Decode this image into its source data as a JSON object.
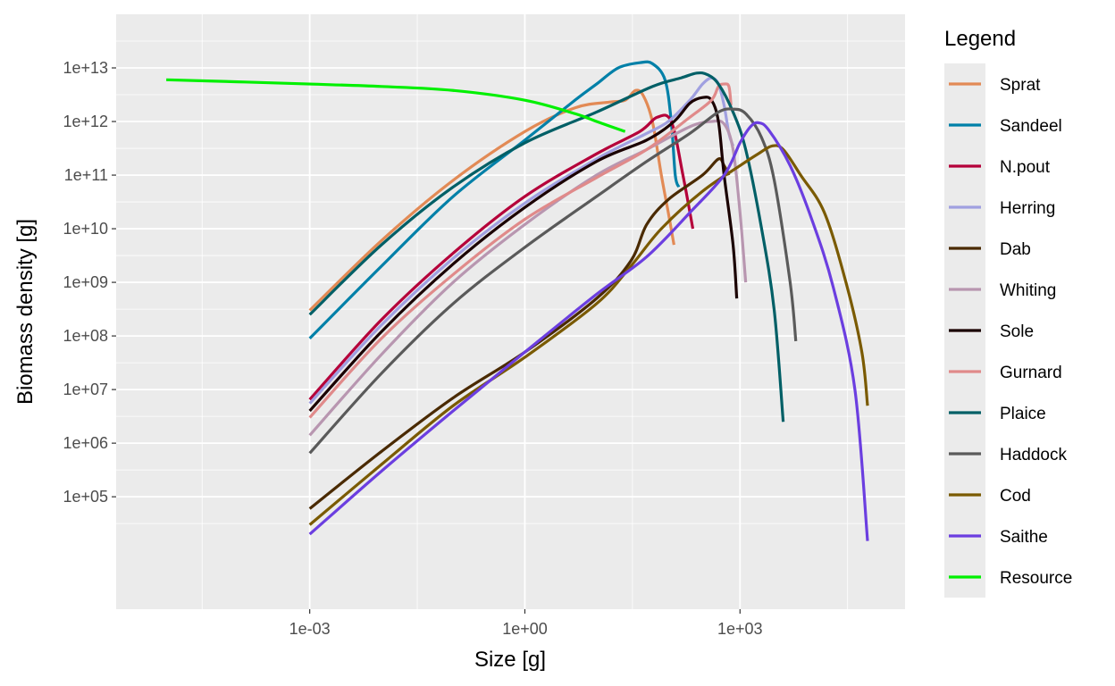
{
  "chart_data": {
    "type": "line",
    "xlabel": "Size [g]",
    "ylabel": "Biomass density [g]",
    "x_scale": "log10",
    "y_scale": "log10",
    "xlim": [
      2e-06,
      200000
    ],
    "ylim": [
      800,
      100000000000000
    ],
    "x_ticks": [
      {
        "value": 0.001,
        "label": "1e-03"
      },
      {
        "value": 1,
        "label": "1e+00"
      },
      {
        "value": 1000,
        "label": "1e+03"
      }
    ],
    "y_ticks": [
      {
        "value": 100000,
        "label": "1e+05"
      },
      {
        "value": 1000000,
        "label": "1e+06"
      },
      {
        "value": 10000000,
        "label": "1e+07"
      },
      {
        "value": 100000000,
        "label": "1e+08"
      },
      {
        "value": 1000000000,
        "label": "1e+09"
      },
      {
        "value": 10000000000,
        "label": "1e+10"
      },
      {
        "value": 100000000000,
        "label": "1e+11"
      },
      {
        "value": 1000000000000,
        "label": "1e+12"
      },
      {
        "value": 10000000000000,
        "label": "1e+13"
      }
    ],
    "grid": true,
    "legend": {
      "title": "Legend",
      "position": "right"
    },
    "series": [
      {
        "name": "Sprat",
        "color": "#E28A55",
        "points": [
          [
            0.001,
            300000000.0
          ],
          [
            0.01,
            6000000000.0
          ],
          [
            0.1,
            80000000000.0
          ],
          [
            1,
            650000000000.0
          ],
          [
            5,
            1800000000000.0
          ],
          [
            15,
            2300000000000.0
          ],
          [
            25,
            2500000000000.0
          ],
          [
            35,
            3800000000000.0
          ],
          [
            45,
            3000000000000.0
          ],
          [
            60,
            1000000000000.0
          ],
          [
            80,
            100000000000.0
          ],
          [
            100,
            20000000000.0
          ],
          [
            120,
            5000000000.0
          ]
        ]
      },
      {
        "name": "Sandeel",
        "color": "#0080A8",
        "points": [
          [
            0.001,
            90000000.0
          ],
          [
            0.01,
            2000000000.0
          ],
          [
            0.1,
            40000000000.0
          ],
          [
            1,
            450000000000.0
          ],
          [
            5,
            2500000000000.0
          ],
          [
            10,
            5000000000000.0
          ],
          [
            20,
            10000000000000.0
          ],
          [
            40,
            12500000000000.0
          ],
          [
            60,
            12000000000000.0
          ],
          [
            90,
            6000000000000.0
          ],
          [
            110,
            1000000000000.0
          ],
          [
            125,
            100000000000.0
          ],
          [
            140,
            60000000000.0
          ]
        ]
      },
      {
        "name": "N.pout",
        "color": "#B5003A",
        "points": [
          [
            0.001,
            6500000.0
          ],
          [
            0.01,
            200000000.0
          ],
          [
            0.1,
            3500000000.0
          ],
          [
            1,
            40000000000.0
          ],
          [
            10,
            250000000000.0
          ],
          [
            40,
            650000000000.0
          ],
          [
            70,
            1200000000000.0
          ],
          [
            110,
            1000000000000.0
          ],
          [
            160,
            100000000000.0
          ],
          [
            220,
            10000000000.0
          ]
        ]
      },
      {
        "name": "Herring",
        "color": "#A0A0E0",
        "points": [
          [
            0.001,
            5500000.0
          ],
          [
            0.01,
            160000000.0
          ],
          [
            0.1,
            2800000000.0
          ],
          [
            1,
            30000000000.0
          ],
          [
            10,
            200000000000.0
          ],
          [
            50,
            600000000000.0
          ],
          [
            100,
            1000000000000.0
          ],
          [
            200,
            2500000000000.0
          ],
          [
            300,
            5000000000000.0
          ],
          [
            400,
            6500000000000.0
          ],
          [
            500,
            5000000000000.0
          ],
          [
            600,
            2000000000000.0
          ],
          [
            700,
            600000000000.0
          ],
          [
            800,
            350000000000.0
          ]
        ]
      },
      {
        "name": "Dab",
        "color": "#4A2A00",
        "points": [
          [
            0.001,
            60000.0
          ],
          [
            0.01,
            700000.0
          ],
          [
            0.1,
            7000000.0
          ],
          [
            1,
            50000000.0
          ],
          [
            10,
            500000000.0
          ],
          [
            30,
            2500000000.0
          ],
          [
            50,
            12000000000.0
          ],
          [
            100,
            35000000000.0
          ],
          [
            300,
            100000000000.0
          ],
          [
            500,
            200000000000.0
          ],
          [
            600,
            150000000000.0
          ],
          [
            700,
            100000000000.0
          ]
        ]
      },
      {
        "name": "Whiting",
        "color": "#B896B0",
        "points": [
          [
            0.001,
            1400000.0
          ],
          [
            0.01,
            45000000.0
          ],
          [
            0.1,
            1000000000.0
          ],
          [
            1,
            12000000000.0
          ],
          [
            10,
            100000000000.0
          ],
          [
            50,
            300000000000.0
          ],
          [
            200,
            800000000000.0
          ],
          [
            400,
            1000000000000.0
          ],
          [
            600,
            900000000000.0
          ],
          [
            800,
            300000000000.0
          ],
          [
            1000,
            20000000000.0
          ],
          [
            1200,
            1000000000.0
          ]
        ]
      },
      {
        "name": "Sole",
        "color": "#1A0000",
        "points": [
          [
            0.001,
            4000000.0
          ],
          [
            0.01,
            120000000.0
          ],
          [
            0.1,
            2200000000.0
          ],
          [
            1,
            25000000000.0
          ],
          [
            10,
            180000000000.0
          ],
          [
            50,
            450000000000.0
          ],
          [
            120,
            1000000000000.0
          ],
          [
            200,
            2200000000000.0
          ],
          [
            300,
            2800000000000.0
          ],
          [
            400,
            2500000000000.0
          ],
          [
            500,
            1000000000000.0
          ],
          [
            600,
            100000000000.0
          ],
          [
            800,
            5000000000.0
          ],
          [
            900,
            500000000.0
          ]
        ]
      },
      {
        "name": "Gurnard",
        "color": "#E08A8A",
        "points": [
          [
            0.001,
            3000000.0
          ],
          [
            0.01,
            90000000.0
          ],
          [
            0.1,
            1400000000.0
          ],
          [
            1,
            15000000000.0
          ],
          [
            10,
            90000000000.0
          ],
          [
            50,
            300000000000.0
          ],
          [
            200,
            1200000000000.0
          ],
          [
            400,
            2500000000000.0
          ],
          [
            500,
            4500000000000.0
          ],
          [
            600,
            5000000000000.0
          ],
          [
            700,
            4500000000000.0
          ],
          [
            750,
            2000000000000.0
          ]
        ]
      },
      {
        "name": "Plaice",
        "color": "#005F66",
        "points": [
          [
            0.001,
            250000000.0
          ],
          [
            0.01,
            5000000000.0
          ],
          [
            0.1,
            60000000000.0
          ],
          [
            1,
            400000000000.0
          ],
          [
            10,
            1500000000000.0
          ],
          [
            60,
            4500000000000.0
          ],
          [
            150,
            6500000000000.0
          ],
          [
            250,
            8000000000000.0
          ],
          [
            350,
            7500000000000.0
          ],
          [
            500,
            5000000000000.0
          ],
          [
            800,
            1500000000000.0
          ],
          [
            1200,
            300000000000.0
          ],
          [
            2000,
            10000000000.0
          ],
          [
            3000,
            300000000.0
          ],
          [
            4000,
            2500000.0
          ]
        ]
      },
      {
        "name": "Haddock",
        "color": "#5A5A5A",
        "points": [
          [
            0.001,
            650000.0
          ],
          [
            0.01,
            20000000.0
          ],
          [
            0.1,
            400000000.0
          ],
          [
            1,
            4500000000.0
          ],
          [
            10,
            40000000000.0
          ],
          [
            50,
            180000000000.0
          ],
          [
            200,
            600000000000.0
          ],
          [
            500,
            1500000000000.0
          ],
          [
            800,
            1700000000000.0
          ],
          [
            1200,
            1400000000000.0
          ],
          [
            2000,
            500000000000.0
          ],
          [
            3000,
            80000000000.0
          ],
          [
            5000,
            1000000000.0
          ],
          [
            6000,
            80000000.0
          ]
        ]
      },
      {
        "name": "Cod",
        "color": "#7A5A00",
        "points": [
          [
            0.001,
            30000.0
          ],
          [
            0.01,
            400000.0
          ],
          [
            0.1,
            5000000.0
          ],
          [
            1,
            40000000.0
          ],
          [
            10,
            400000000.0
          ],
          [
            30,
            2000000000.0
          ],
          [
            80,
            10000000000.0
          ],
          [
            300,
            50000000000.0
          ],
          [
            1000,
            150000000000.0
          ],
          [
            1800,
            250000000000.0
          ],
          [
            2800,
            350000000000.0
          ],
          [
            4000,
            300000000000.0
          ],
          [
            7000,
            100000000000.0
          ],
          [
            15000,
            20000000000.0
          ],
          [
            30000,
            1000000000.0
          ],
          [
            50000,
            50000000.0
          ],
          [
            60000,
            5000000.0
          ]
        ]
      },
      {
        "name": "Saithe",
        "color": "#6B3EE0",
        "points": [
          [
            0.001,
            20000.0
          ],
          [
            0.01,
            300000.0
          ],
          [
            0.1,
            4000000.0
          ],
          [
            1,
            50000000.0
          ],
          [
            10,
            600000000.0
          ],
          [
            50,
            3000000000.0
          ],
          [
            200,
            20000000000.0
          ],
          [
            600,
            100000000000.0
          ],
          [
            1000,
            400000000000.0
          ],
          [
            1400,
            800000000000.0
          ],
          [
            1800,
            950000000000.0
          ],
          [
            2500,
            700000000000.0
          ],
          [
            5000,
            150000000000.0
          ],
          [
            10000,
            15000000000.0
          ],
          [
            20000,
            800000000.0
          ],
          [
            40000,
            10000000.0
          ],
          [
            60000,
            15000.0
          ]
        ]
      },
      {
        "name": "Resource",
        "color": "#00F000",
        "points": [
          [
            1e-05,
            6000000000000.0
          ],
          [
            0.0001,
            5500000000000.0
          ],
          [
            0.001,
            5000000000000.0
          ],
          [
            0.01,
            4500000000000.0
          ],
          [
            0.1,
            3800000000000.0
          ],
          [
            1,
            2500000000000.0
          ],
          [
            5,
            1400000000000.0
          ],
          [
            10,
            1000000000000.0
          ],
          [
            25,
            650000000000.0
          ]
        ]
      }
    ]
  }
}
